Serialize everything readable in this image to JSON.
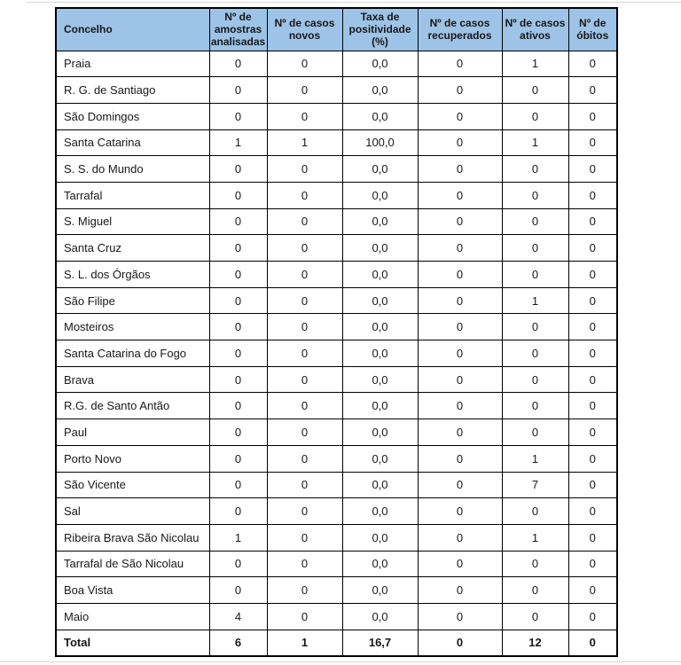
{
  "table": {
    "header_fill": "#9DC3E6",
    "border_color": "#000000",
    "columns": [
      "Concelho",
      "Nº de amostras analisadas",
      "Nº de casos novos",
      "Taxa de positividade (%)",
      "Nº de casos recuperados",
      "Nº de casos ativos",
      "Nº de óbitos"
    ],
    "rows": [
      {
        "concelho": "Praia",
        "values": [
          "0",
          "0",
          "0,0",
          "0",
          "1",
          "0"
        ]
      },
      {
        "concelho": "R. G. de Santiago",
        "values": [
          "0",
          "0",
          "0,0",
          "0",
          "0",
          "0"
        ]
      },
      {
        "concelho": "São Domingos",
        "values": [
          "0",
          "0",
          "0,0",
          "0",
          "0",
          "0"
        ]
      },
      {
        "concelho": "Santa Catarina",
        "values": [
          "1",
          "1",
          "100,0",
          "0",
          "1",
          "0"
        ]
      },
      {
        "concelho": "S. S. do Mundo",
        "values": [
          "0",
          "0",
          "0,0",
          "0",
          "0",
          "0"
        ]
      },
      {
        "concelho": "Tarrafal",
        "values": [
          "0",
          "0",
          "0,0",
          "0",
          "0",
          "0"
        ]
      },
      {
        "concelho": "S. Miguel",
        "values": [
          "0",
          "0",
          "0,0",
          "0",
          "0",
          "0"
        ]
      },
      {
        "concelho": "Santa Cruz",
        "values": [
          "0",
          "0",
          "0,0",
          "0",
          "0",
          "0"
        ]
      },
      {
        "concelho": "S. L. dos Órgãos",
        "values": [
          "0",
          "0",
          "0,0",
          "0",
          "0",
          "0"
        ]
      },
      {
        "concelho": "São Filipe",
        "values": [
          "0",
          "0",
          "0,0",
          "0",
          "1",
          "0"
        ]
      },
      {
        "concelho": "Mosteiros",
        "values": [
          "0",
          "0",
          "0,0",
          "0",
          "0",
          "0"
        ]
      },
      {
        "concelho": "Santa Catarina do Fogo",
        "values": [
          "0",
          "0",
          "0,0",
          "0",
          "0",
          "0"
        ]
      },
      {
        "concelho": "Brava",
        "values": [
          "0",
          "0",
          "0,0",
          "0",
          "0",
          "0"
        ]
      },
      {
        "concelho": "R.G. de Santo Antão",
        "values": [
          "0",
          "0",
          "0,0",
          "0",
          "0",
          "0"
        ]
      },
      {
        "concelho": "Paul",
        "values": [
          "0",
          "0",
          "0,0",
          "0",
          "0",
          "0"
        ]
      },
      {
        "concelho": "Porto Novo",
        "values": [
          "0",
          "0",
          "0,0",
          "0",
          "1",
          "0"
        ]
      },
      {
        "concelho": "São Vicente",
        "values": [
          "0",
          "0",
          "0,0",
          "0",
          "7",
          "0"
        ]
      },
      {
        "concelho": "Sal",
        "values": [
          "0",
          "0",
          "0,0",
          "0",
          "0",
          "0"
        ]
      },
      {
        "concelho": "Ribeira Brava São Nicolau",
        "values": [
          "1",
          "0",
          "0,0",
          "0",
          "1",
          "0"
        ]
      },
      {
        "concelho": "Tarrafal de São Nicolau",
        "values": [
          "0",
          "0",
          "0,0",
          "0",
          "0",
          "0"
        ]
      },
      {
        "concelho": "Boa Vista",
        "values": [
          "0",
          "0",
          "0,0",
          "0",
          "0",
          "0"
        ]
      },
      {
        "concelho": "Maio",
        "values": [
          "4",
          "0",
          "0,0",
          "0",
          "0",
          "0"
        ]
      }
    ],
    "total": {
      "concelho": "Total",
      "values": [
        "6",
        "1",
        "16,7",
        "0",
        "12",
        "0"
      ]
    }
  }
}
